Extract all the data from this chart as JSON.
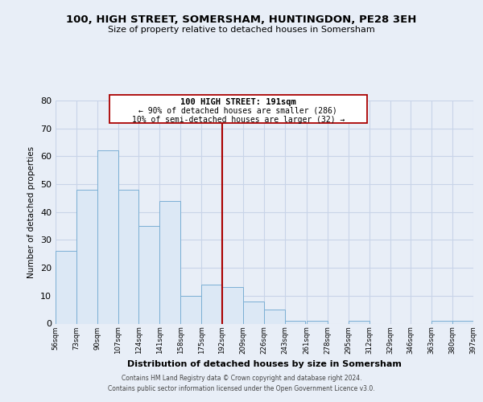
{
  "title": "100, HIGH STREET, SOMERSHAM, HUNTINGDON, PE28 3EH",
  "subtitle": "Size of property relative to detached houses in Somersham",
  "xlabel": "Distribution of detached houses by size in Somersham",
  "ylabel": "Number of detached properties",
  "bin_labels": [
    "56sqm",
    "73sqm",
    "90sqm",
    "107sqm",
    "124sqm",
    "141sqm",
    "158sqm",
    "175sqm",
    "192sqm",
    "209sqm",
    "226sqm",
    "243sqm",
    "261sqm",
    "278sqm",
    "295sqm",
    "312sqm",
    "329sqm",
    "346sqm",
    "363sqm",
    "380sqm",
    "397sqm"
  ],
  "bar_values": [
    26,
    48,
    62,
    48,
    35,
    44,
    10,
    14,
    13,
    8,
    5,
    1,
    1,
    0,
    1,
    0,
    0,
    0,
    1,
    1,
    0
  ],
  "bar_color": "#dce8f5",
  "bar_edge_color": "#7bafd4",
  "annotation_text_line1": "100 HIGH STREET: 191sqm",
  "annotation_text_line2": "← 90% of detached houses are smaller (286)",
  "annotation_text_line3": "10% of semi-detached houses are larger (32) →",
  "annotation_box_color": "#ffffff",
  "annotation_box_edge": "#aa0000",
  "vline_color": "#aa0000",
  "ylim": [
    0,
    80
  ],
  "yticks": [
    0,
    10,
    20,
    30,
    40,
    50,
    60,
    70,
    80
  ],
  "grid_color": "#c8d4e8",
  "background_color": "#e8eef7",
  "footer_line1": "Contains HM Land Registry data © Crown copyright and database right 2024.",
  "footer_line2": "Contains public sector information licensed under the Open Government Licence v3.0.",
  "bin_edges": [
    56,
    73,
    90,
    107,
    124,
    141,
    158,
    175,
    192,
    209,
    226,
    243,
    261,
    278,
    295,
    312,
    329,
    346,
    363,
    380,
    397
  ]
}
